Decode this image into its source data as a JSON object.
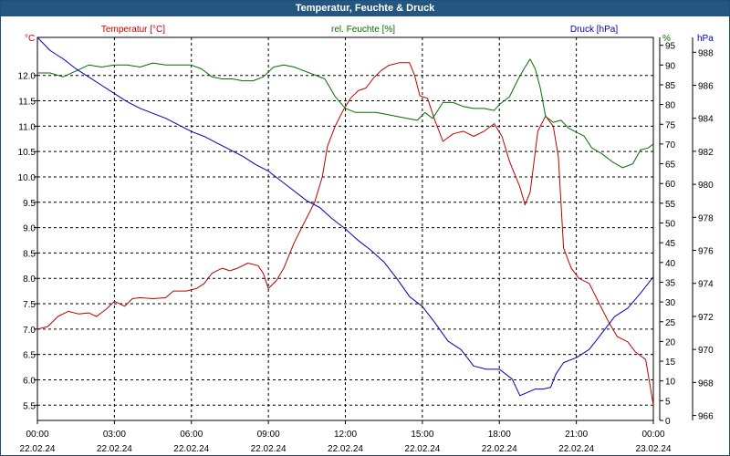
{
  "window": {
    "title": "Temperatur, Feuchte & Druck"
  },
  "chart_data": {
    "type": "line",
    "title": "Temperatur, Feuchte & Druck",
    "grid": true,
    "x_ticks": [
      {
        "time": "00:00",
        "date": "22.02.24"
      },
      {
        "time": "03:00",
        "date": "22.02.24"
      },
      {
        "time": "06:00",
        "date": "22.02.24"
      },
      {
        "time": "09:00",
        "date": "22.02.24"
      },
      {
        "time": "12:00",
        "date": "22.02.24"
      },
      {
        "time": "15:00",
        "date": "22.02.24"
      },
      {
        "time": "18:00",
        "date": "22.02.24"
      },
      {
        "time": "21:00",
        "date": "22.02.24"
      },
      {
        "time": "00:00",
        "date": "23.02.24"
      }
    ],
    "x_unit": "hours",
    "xlim": [
      0,
      24
    ],
    "axes": {
      "temperature": {
        "unit_label": "°C",
        "ylim": [
          5.2,
          12.75
        ],
        "ticks": [
          "5.5",
          "6.0",
          "6.5",
          "7.0",
          "7.5",
          "8.0",
          "8.5",
          "9.0",
          "9.5",
          "10.0",
          "10.5",
          "11.0",
          "11.5",
          "12.0"
        ],
        "color": "#c00000"
      },
      "humidity": {
        "unit_label": "%",
        "ylim": [
          0,
          97
        ],
        "ticks": [
          "0",
          "5",
          "10",
          "15",
          "20",
          "25",
          "30",
          "35",
          "40",
          "45",
          "50",
          "55",
          "60",
          "65",
          "70",
          "75",
          "80",
          "85",
          "90",
          "95"
        ],
        "color": "#007000"
      },
      "pressure": {
        "unit_label": "hPa",
        "ylim": [
          965.7,
          988.9
        ],
        "ticks": [
          "966",
          "968",
          "970",
          "972",
          "974",
          "976",
          "978",
          "980",
          "982",
          "984",
          "986",
          "988"
        ],
        "color": "#0000b0"
      }
    },
    "series": [
      {
        "name": "Temperatur [°C]",
        "axis": "temperature",
        "color": "#c00000",
        "points": [
          [
            0,
            7.0
          ],
          [
            0.4,
            7.05
          ],
          [
            0.8,
            7.25
          ],
          [
            1.2,
            7.35
          ],
          [
            1.6,
            7.3
          ],
          [
            2.0,
            7.32
          ],
          [
            2.3,
            7.25
          ],
          [
            2.7,
            7.4
          ],
          [
            3.0,
            7.55
          ],
          [
            3.4,
            7.45
          ],
          [
            3.7,
            7.6
          ],
          [
            4.0,
            7.62
          ],
          [
            4.5,
            7.6
          ],
          [
            5.0,
            7.62
          ],
          [
            5.3,
            7.75
          ],
          [
            5.8,
            7.75
          ],
          [
            6.2,
            7.8
          ],
          [
            6.5,
            7.9
          ],
          [
            6.8,
            8.1
          ],
          [
            7.2,
            8.2
          ],
          [
            7.5,
            8.15
          ],
          [
            7.8,
            8.2
          ],
          [
            8.2,
            8.3
          ],
          [
            8.6,
            8.25
          ],
          [
            8.8,
            8.1
          ],
          [
            9.0,
            7.8
          ],
          [
            9.3,
            7.95
          ],
          [
            9.6,
            8.2
          ],
          [
            10.0,
            8.7
          ],
          [
            10.4,
            9.1
          ],
          [
            10.8,
            9.5
          ],
          [
            11.1,
            10.0
          ],
          [
            11.3,
            10.6
          ],
          [
            11.6,
            11.0
          ],
          [
            11.9,
            11.3
          ],
          [
            12.2,
            11.55
          ],
          [
            12.5,
            11.7
          ],
          [
            12.8,
            11.75
          ],
          [
            13.1,
            11.95
          ],
          [
            13.4,
            12.1
          ],
          [
            13.7,
            12.2
          ],
          [
            14.1,
            12.25
          ],
          [
            14.5,
            12.25
          ],
          [
            14.7,
            12.0
          ],
          [
            14.9,
            11.6
          ],
          [
            15.2,
            11.55
          ],
          [
            15.5,
            11.1
          ],
          [
            15.8,
            10.7
          ],
          [
            16.2,
            10.85
          ],
          [
            16.6,
            10.9
          ],
          [
            17.0,
            10.8
          ],
          [
            17.4,
            10.9
          ],
          [
            17.8,
            11.05
          ],
          [
            18.1,
            10.8
          ],
          [
            18.4,
            10.3
          ],
          [
            18.8,
            9.8
          ],
          [
            19.0,
            9.45
          ],
          [
            19.2,
            9.7
          ],
          [
            19.5,
            10.9
          ],
          [
            19.8,
            11.2
          ],
          [
            20.1,
            11.0
          ],
          [
            20.3,
            10.4
          ],
          [
            20.5,
            8.6
          ],
          [
            20.8,
            8.2
          ],
          [
            21.1,
            8.0
          ],
          [
            21.5,
            7.9
          ],
          [
            21.9,
            7.5
          ],
          [
            22.3,
            7.1
          ],
          [
            22.6,
            6.85
          ],
          [
            23.0,
            6.75
          ],
          [
            23.3,
            6.55
          ],
          [
            23.7,
            6.4
          ],
          [
            24.0,
            5.5
          ]
        ]
      },
      {
        "name": "rel. Feuchte [%]",
        "axis": "humidity",
        "color": "#007000",
        "points": [
          [
            0,
            88
          ],
          [
            0.5,
            88
          ],
          [
            1.0,
            87
          ],
          [
            1.5,
            88.5
          ],
          [
            2.0,
            90
          ],
          [
            2.5,
            89.5
          ],
          [
            3.0,
            90
          ],
          [
            3.5,
            90
          ],
          [
            4.0,
            89.5
          ],
          [
            4.5,
            90.5
          ],
          [
            5.0,
            90
          ],
          [
            5.5,
            90
          ],
          [
            6.0,
            90
          ],
          [
            6.4,
            89
          ],
          [
            6.8,
            87
          ],
          [
            7.2,
            86.5
          ],
          [
            7.6,
            86.5
          ],
          [
            8.0,
            86
          ],
          [
            8.4,
            86
          ],
          [
            8.8,
            87
          ],
          [
            9.2,
            89.5
          ],
          [
            9.6,
            90
          ],
          [
            10.0,
            89.5
          ],
          [
            10.4,
            88.5
          ],
          [
            10.8,
            87.5
          ],
          [
            11.2,
            86.5
          ],
          [
            11.6,
            82
          ],
          [
            12.0,
            79
          ],
          [
            12.4,
            78
          ],
          [
            12.8,
            78
          ],
          [
            13.2,
            78
          ],
          [
            13.6,
            77.5
          ],
          [
            14.0,
            77
          ],
          [
            14.4,
            76.5
          ],
          [
            14.8,
            76
          ],
          [
            15.1,
            78
          ],
          [
            15.4,
            76.5
          ],
          [
            15.8,
            80.5
          ],
          [
            16.2,
            80.5
          ],
          [
            16.6,
            79.5
          ],
          [
            17.0,
            79
          ],
          [
            17.4,
            79
          ],
          [
            17.8,
            78.5
          ],
          [
            18.0,
            80
          ],
          [
            18.4,
            82
          ],
          [
            18.7,
            86
          ],
          [
            19.0,
            89.5
          ],
          [
            19.2,
            91.5
          ],
          [
            19.4,
            89
          ],
          [
            19.6,
            84
          ],
          [
            19.8,
            77
          ],
          [
            20.1,
            75.5
          ],
          [
            20.4,
            76
          ],
          [
            20.7,
            74
          ],
          [
            21.0,
            73
          ],
          [
            21.3,
            72
          ],
          [
            21.6,
            69
          ],
          [
            22.0,
            67.5
          ],
          [
            22.4,
            65.5
          ],
          [
            22.8,
            64
          ],
          [
            23.2,
            65
          ],
          [
            23.5,
            68.5
          ],
          [
            23.8,
            69
          ],
          [
            24.0,
            70
          ]
        ]
      },
      {
        "name": "Druck [hPa]",
        "axis": "pressure",
        "color": "#0000b0",
        "points": [
          [
            0,
            988.9
          ],
          [
            0.5,
            988.1
          ],
          [
            1.0,
            987.6
          ],
          [
            1.5,
            987.0
          ],
          [
            2.0,
            986.5
          ],
          [
            2.5,
            986.0
          ],
          [
            3.0,
            985.5
          ],
          [
            3.5,
            985.0
          ],
          [
            4.0,
            984.6
          ],
          [
            4.5,
            984.3
          ],
          [
            5.0,
            984.0
          ],
          [
            5.5,
            983.6
          ],
          [
            6.0,
            983.2
          ],
          [
            6.5,
            982.9
          ],
          [
            7.0,
            982.5
          ],
          [
            7.5,
            982.1
          ],
          [
            8.0,
            981.7
          ],
          [
            8.5,
            981.2
          ],
          [
            9.0,
            980.8
          ],
          [
            9.5,
            980.2
          ],
          [
            10.0,
            979.6
          ],
          [
            10.5,
            979.0
          ],
          [
            11.0,
            978.6
          ],
          [
            11.5,
            977.9
          ],
          [
            12.0,
            977.3
          ],
          [
            12.5,
            976.6
          ],
          [
            13.0,
            976.0
          ],
          [
            13.5,
            975.3
          ],
          [
            14.0,
            974.3
          ],
          [
            14.5,
            973.2
          ],
          [
            15.0,
            972.6
          ],
          [
            15.5,
            971.6
          ],
          [
            16.0,
            970.5
          ],
          [
            16.5,
            970.0
          ],
          [
            17.0,
            969.0
          ],
          [
            17.5,
            968.8
          ],
          [
            18.0,
            968.8
          ],
          [
            18.5,
            968.2
          ],
          [
            18.8,
            967.2
          ],
          [
            19.1,
            967.4
          ],
          [
            19.4,
            967.6
          ],
          [
            19.7,
            967.6
          ],
          [
            20.0,
            967.7
          ],
          [
            20.2,
            968.5
          ],
          [
            20.5,
            969.2
          ],
          [
            21.0,
            969.5
          ],
          [
            21.5,
            970.0
          ],
          [
            22.0,
            971.0
          ],
          [
            22.5,
            972.0
          ],
          [
            23.0,
            972.5
          ],
          [
            23.5,
            973.4
          ],
          [
            24.0,
            974.4
          ]
        ]
      }
    ],
    "legend": [
      {
        "label": "Temperatur [°C]",
        "color": "#c00000",
        "position": "top-left"
      },
      {
        "label": "rel. Feuchte [%]",
        "color": "#007000",
        "position": "top-center"
      },
      {
        "label": "Druck [hPa]",
        "color": "#0000b0",
        "position": "top-right"
      }
    ]
  }
}
